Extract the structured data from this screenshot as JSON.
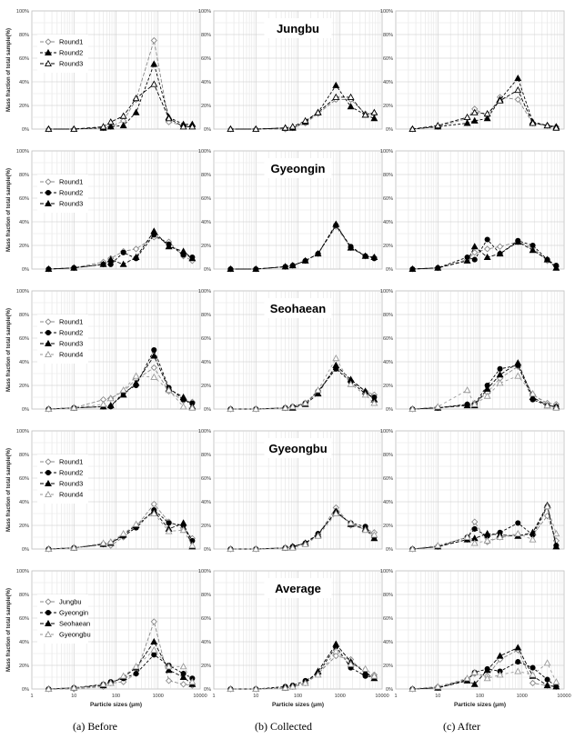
{
  "chart_data": [
    {
      "type": "line",
      "row": "Jungbu",
      "panel": "Before",
      "series": [
        {
          "name": "Round1",
          "marker": "diamond-open",
          "values": [
            0,
            0,
            1,
            2,
            7,
            25,
            75,
            6,
            3,
            3
          ]
        },
        {
          "name": "Round2",
          "marker": "triangle-filled",
          "values": [
            0,
            0,
            1,
            2,
            3,
            14,
            55,
            10,
            4,
            4
          ]
        },
        {
          "name": "Round3",
          "marker": "triangle-open",
          "values": [
            0,
            0,
            2,
            6,
            11,
            26,
            38,
            9,
            2,
            2
          ]
        }
      ]
    },
    {
      "type": "line",
      "row": "Jungbu",
      "panel": "Collected",
      "series": [
        {
          "name": "Round1",
          "marker": "diamond-open",
          "values": [
            0,
            0,
            0,
            1,
            5,
            13,
            25,
            25,
            13,
            13
          ]
        },
        {
          "name": "Round2",
          "marker": "triangle-filled",
          "values": [
            0,
            0,
            1,
            1,
            6,
            14,
            37,
            19,
            12,
            9
          ]
        },
        {
          "name": "Round3",
          "marker": "triangle-open",
          "values": [
            0,
            0,
            1,
            2,
            7,
            14,
            27,
            27,
            12,
            14
          ]
        }
      ]
    },
    {
      "type": "line",
      "row": "Jungbu",
      "panel": "After",
      "series": [
        {
          "name": "Round1",
          "marker": "diamond-open",
          "values": [
            0,
            2,
            9,
            17,
            11,
            27,
            25,
            5,
            3,
            2
          ]
        },
        {
          "name": "Round2",
          "marker": "triangle-filled",
          "values": [
            0,
            2,
            5,
            7,
            9,
            25,
            43,
            6,
            3,
            2
          ]
        },
        {
          "name": "Round3",
          "marker": "triangle-open",
          "values": [
            0,
            3,
            10,
            14,
            13,
            24,
            33,
            5,
            3,
            1
          ]
        }
      ]
    },
    {
      "type": "line",
      "row": "Gyeongin",
      "panel": "Before",
      "series": [
        {
          "name": "Round1",
          "marker": "diamond-open",
          "values": [
            0,
            1,
            6,
            9,
            15,
            17,
            27,
            23,
            11,
            7
          ]
        },
        {
          "name": "Round2",
          "marker": "circle-filled",
          "values": [
            0,
            1,
            4,
            4,
            14,
            9,
            29,
            21,
            12,
            10
          ]
        },
        {
          "name": "Round3",
          "marker": "triangle-filled",
          "values": [
            0,
            1,
            4,
            8,
            4,
            10,
            32,
            19,
            15,
            9
          ]
        }
      ]
    },
    {
      "type": "line",
      "row": "Gyeongin",
      "panel": "Collected",
      "series": [
        {
          "name": "Round1",
          "marker": "diamond-open",
          "values": [
            0,
            0,
            2,
            3,
            7,
            13,
            36,
            18,
            11,
            10
          ]
        },
        {
          "name": "Round2",
          "marker": "circle-filled",
          "values": [
            0,
            0,
            2,
            3,
            7,
            13,
            37,
            19,
            11,
            9
          ]
        },
        {
          "name": "Round3",
          "marker": "triangle-filled",
          "values": [
            0,
            0,
            2,
            3,
            7,
            13,
            38,
            18,
            11,
            10
          ]
        }
      ]
    },
    {
      "type": "line",
      "row": "Gyeongin",
      "panel": "After",
      "series": [
        {
          "name": "Round1",
          "marker": "diamond-open",
          "values": [
            0,
            1,
            8,
            14,
            17,
            19,
            23,
            18,
            7,
            2
          ]
        },
        {
          "name": "Round2",
          "marker": "circle-filled",
          "values": [
            0,
            1,
            10,
            8,
            25,
            13,
            24,
            20,
            8,
            3
          ]
        },
        {
          "name": "Round3",
          "marker": "triangle-filled",
          "values": [
            0,
            1,
            7,
            19,
            10,
            13,
            23,
            16,
            8,
            1
          ]
        }
      ]
    },
    {
      "type": "line",
      "row": "Seohaean",
      "panel": "Before",
      "series": [
        {
          "name": "Round1",
          "marker": "diamond-open",
          "values": [
            0,
            1,
            8,
            9,
            15,
            25,
            35,
            15,
            7,
            6
          ]
        },
        {
          "name": "Round2",
          "marker": "circle-filled",
          "values": [
            0,
            1,
            2,
            2,
            14,
            20,
            50,
            18,
            8,
            5
          ]
        },
        {
          "name": "Round3",
          "marker": "triangle-filled",
          "values": [
            0,
            1,
            2,
            3,
            12,
            22,
            45,
            17,
            10,
            2
          ]
        },
        {
          "name": "Round4",
          "marker": "triangle-open",
          "values": [
            0,
            1,
            4,
            9,
            16,
            28,
            27,
            16,
            2,
            1
          ]
        }
      ]
    },
    {
      "type": "line",
      "row": "Seohaean",
      "panel": "Collected",
      "series": [
        {
          "name": "Round1",
          "marker": "diamond-open",
          "values": [
            0,
            0,
            1,
            2,
            5,
            15,
            35,
            24,
            15,
            12
          ]
        },
        {
          "name": "Round2",
          "marker": "circle-filled",
          "values": [
            0,
            0,
            1,
            2,
            5,
            15,
            34,
            23,
            13,
            10
          ]
        },
        {
          "name": "Round3",
          "marker": "triangle-filled",
          "values": [
            0,
            0,
            1,
            1,
            4,
            13,
            37,
            25,
            15,
            8
          ]
        },
        {
          "name": "Round4",
          "marker": "triangle-open",
          "values": [
            0,
            0,
            1,
            2,
            5,
            16,
            43,
            21,
            12,
            5
          ]
        }
      ]
    },
    {
      "type": "line",
      "row": "Seohaean",
      "panel": "After",
      "series": [
        {
          "name": "Round1",
          "marker": "diamond-open",
          "values": [
            0,
            1,
            4,
            5,
            14,
            26,
            36,
            12,
            5,
            4
          ]
        },
        {
          "name": "Round2",
          "marker": "circle-filled",
          "values": [
            0,
            1,
            4,
            4,
            20,
            34,
            37,
            8,
            3,
            2
          ]
        },
        {
          "name": "Round3",
          "marker": "triangle-filled",
          "values": [
            0,
            1,
            3,
            3,
            17,
            29,
            39,
            10,
            3,
            2
          ]
        },
        {
          "name": "Round4",
          "marker": "triangle-open",
          "values": [
            0,
            2,
            16,
            4,
            11,
            22,
            28,
            13,
            3,
            1
          ]
        }
      ]
    },
    {
      "type": "line",
      "row": "Gyeongbu",
      "panel": "Before",
      "series": [
        {
          "name": "Round1",
          "marker": "diamond-open",
          "values": [
            0,
            1,
            4,
            3,
            10,
            19,
            38,
            23,
            17,
            9
          ]
        },
        {
          "name": "Round2",
          "marker": "circle-filled",
          "values": [
            0,
            1,
            4,
            5,
            11,
            18,
            33,
            22,
            20,
            7
          ]
        },
        {
          "name": "Round3",
          "marker": "triangle-filled",
          "values": [
            0,
            1,
            4,
            5,
            12,
            20,
            32,
            17,
            22,
            2
          ]
        },
        {
          "name": "Round4",
          "marker": "triangle-open",
          "values": [
            0,
            1,
            5,
            6,
            13,
            21,
            30,
            15,
            16,
            3
          ]
        }
      ]
    },
    {
      "type": "line",
      "row": "Gyeongbu",
      "panel": "Collected",
      "series": [
        {
          "name": "Round1",
          "marker": "diamond-open",
          "values": [
            0,
            0,
            1,
            2,
            5,
            12,
            35,
            20,
            17,
            14
          ]
        },
        {
          "name": "Round2",
          "marker": "circle-filled",
          "values": [
            0,
            0,
            1,
            2,
            5,
            13,
            31,
            22,
            19,
            10
          ]
        },
        {
          "name": "Round3",
          "marker": "triangle-filled",
          "values": [
            0,
            0,
            1,
            2,
            5,
            12,
            32,
            21,
            17,
            9
          ]
        },
        {
          "name": "Round4",
          "marker": "triangle-open",
          "values": [
            0,
            0,
            1,
            1,
            4,
            11,
            30,
            22,
            16,
            12
          ]
        }
      ]
    },
    {
      "type": "line",
      "row": "Gyeongbu",
      "panel": "After",
      "series": [
        {
          "name": "Round1",
          "marker": "diamond-open",
          "values": [
            0,
            2,
            8,
            23,
            6,
            10,
            12,
            12,
            28,
            7
          ]
        },
        {
          "name": "Round2",
          "marker": "circle-filled",
          "values": [
            0,
            2,
            10,
            17,
            11,
            14,
            22,
            12,
            36,
            3
          ]
        },
        {
          "name": "Round3",
          "marker": "triangle-filled",
          "values": [
            0,
            2,
            8,
            9,
            13,
            12,
            11,
            14,
            37,
            2
          ]
        },
        {
          "name": "Round4",
          "marker": "triangle-open",
          "values": [
            0,
            3,
            10,
            5,
            7,
            10,
            13,
            8,
            36,
            13
          ]
        }
      ]
    },
    {
      "type": "line",
      "row": "Average",
      "panel": "Before",
      "series": [
        {
          "name": "Jungbu",
          "marker": "diamond-open",
          "values": [
            0,
            0,
            2,
            5,
            6,
            13,
            57,
            7,
            4,
            3
          ]
        },
        {
          "name": "Gyeongin",
          "marker": "circle-filled",
          "values": [
            0,
            1,
            4,
            6,
            9,
            13,
            29,
            20,
            13,
            9
          ]
        },
        {
          "name": "Seohaean",
          "marker": "triangle-filled",
          "values": [
            0,
            1,
            3,
            5,
            10,
            18,
            40,
            16,
            10,
            4
          ]
        },
        {
          "name": "Gyeongbu",
          "marker": "triangle-open",
          "values": [
            0,
            1,
            4,
            5,
            11,
            19,
            33,
            19,
            19,
            6
          ]
        }
      ]
    },
    {
      "type": "line",
      "row": "Average",
      "panel": "Collected",
      "series": [
        {
          "name": "Jungbu",
          "marker": "diamond-open",
          "values": [
            0,
            0,
            1,
            2,
            5,
            13,
            28,
            25,
            13,
            12
          ]
        },
        {
          "name": "Gyeongin",
          "marker": "circle-filled",
          "values": [
            0,
            0,
            2,
            3,
            7,
            13,
            36,
            18,
            11,
            10
          ]
        },
        {
          "name": "Seohaean",
          "marker": "triangle-filled",
          "values": [
            0,
            0,
            1,
            2,
            5,
            15,
            38,
            23,
            14,
            9
          ]
        },
        {
          "name": "Gyeongbu",
          "marker": "triangle-open",
          "values": [
            0,
            0,
            1,
            2,
            5,
            12,
            32,
            21,
            17,
            11
          ]
        }
      ]
    },
    {
      "type": "line",
      "row": "Average",
      "panel": "After",
      "series": [
        {
          "name": "Jungbu",
          "marker": "diamond-open",
          "values": [
            0,
            2,
            8,
            13,
            11,
            25,
            33,
            5,
            3,
            2
          ]
        },
        {
          "name": "Gyeongin",
          "marker": "circle-filled",
          "values": [
            0,
            1,
            8,
            14,
            17,
            15,
            23,
            18,
            8,
            2
          ]
        },
        {
          "name": "Seohaean",
          "marker": "triangle-filled",
          "values": [
            0,
            1,
            7,
            4,
            16,
            28,
            35,
            11,
            3,
            2
          ]
        },
        {
          "name": "Gyeongbu",
          "marker": "triangle-open",
          "values": [
            0,
            2,
            9,
            14,
            9,
            12,
            15,
            12,
            22,
            6
          ]
        }
      ]
    }
  ],
  "x_points": [
    2.5,
    10,
    50,
    75,
    150,
    300,
    800,
    1800,
    4000,
    6500
  ],
  "x_scale": "log",
  "x_range": [
    1,
    10000
  ],
  "x_ticks": [
    "1",
    "10",
    "100",
    "1000",
    "10000"
  ],
  "y_range": [
    0,
    100
  ],
  "y_ticks": [
    "0%",
    "20%",
    "40%",
    "60%",
    "80%",
    "100%"
  ],
  "ylabel": "Mass fraction of total sample(%)",
  "xlabel": "Particle sizes (μm)",
  "row_titles": [
    "Jungbu",
    "Gyeongin",
    "Seohaean",
    "Gyeongbu",
    "Average"
  ],
  "legend_row": {
    "Jungbu": "before",
    "Gyeongin": "before",
    "Seohaean": "before",
    "Gyeongbu": "before",
    "Average": "before"
  },
  "grid": true,
  "captions": [
    "(a)  Before",
    "(b)  Collected",
    "(c)  After"
  ]
}
